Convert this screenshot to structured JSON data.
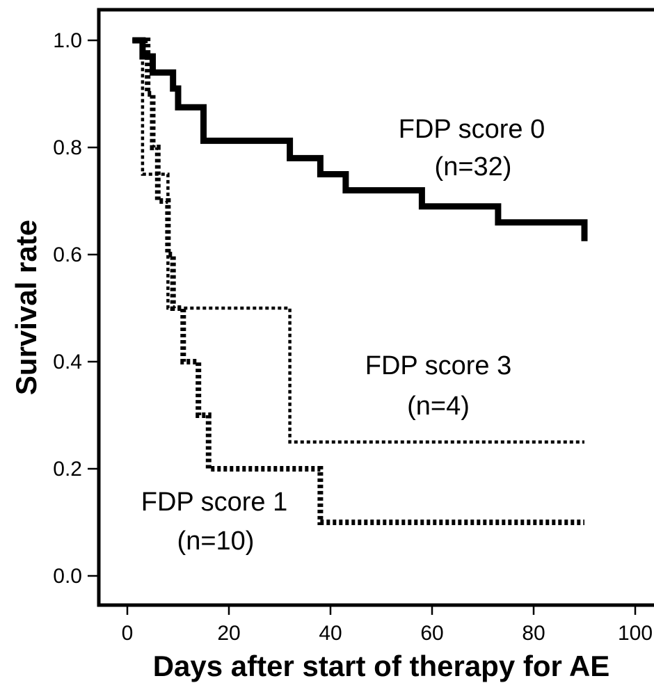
{
  "chart_data": {
    "type": "line",
    "step": true,
    "title": "",
    "xlabel": "Days after start of therapy for AE",
    "ylabel": "Survival rate",
    "xlim": [
      -2,
      104
    ],
    "ylim": [
      -0.05,
      1.06
    ],
    "x_ticks": [
      0,
      20,
      40,
      60,
      80,
      100
    ],
    "y_ticks": [
      0.0,
      0.2,
      0.4,
      0.6,
      0.8,
      1.0
    ],
    "x_tick_labels": [
      "0",
      "20",
      "40",
      "60",
      "80",
      "100"
    ],
    "y_tick_labels": [
      "0.0",
      "0.2",
      "0.4",
      "0.6",
      "0.8",
      "1.0"
    ],
    "grid": false,
    "legend": "none",
    "series": [
      {
        "label_line1": "FDP score 0",
        "label_line2": "(n=32)",
        "line_style": "solid",
        "color": "#000000",
        "points": [
          [
            1,
            1.0
          ],
          [
            3,
            0.97
          ],
          [
            5,
            0.94
          ],
          [
            9,
            0.91
          ],
          [
            10,
            0.875
          ],
          [
            15,
            0.8125
          ],
          [
            32,
            0.78
          ],
          [
            38,
            0.75
          ],
          [
            43,
            0.72
          ],
          [
            58,
            0.69
          ],
          [
            73,
            0.66
          ],
          [
            90,
            0.625
          ]
        ]
      },
      {
        "label_line1": "FDP score 1",
        "label_line2": "(n=10)",
        "line_style": "thick-dotted",
        "color": "#000000",
        "points": [
          [
            1,
            1.0
          ],
          [
            4,
            0.9
          ],
          [
            5,
            0.8
          ],
          [
            6,
            0.7
          ],
          [
            8,
            0.6
          ],
          [
            9,
            0.5
          ],
          [
            11,
            0.4
          ],
          [
            14,
            0.3
          ],
          [
            16,
            0.2
          ],
          [
            38,
            0.1
          ],
          [
            90,
            0.1
          ]
        ]
      },
      {
        "label_line1": "FDP score 3",
        "label_line2": "(n=4)",
        "line_style": "thin-dotted",
        "color": "#000000",
        "points": [
          [
            1,
            1.0
          ],
          [
            3,
            0.75
          ],
          [
            8,
            0.5
          ],
          [
            32,
            0.25
          ],
          [
            90,
            0.25
          ]
        ]
      }
    ]
  }
}
